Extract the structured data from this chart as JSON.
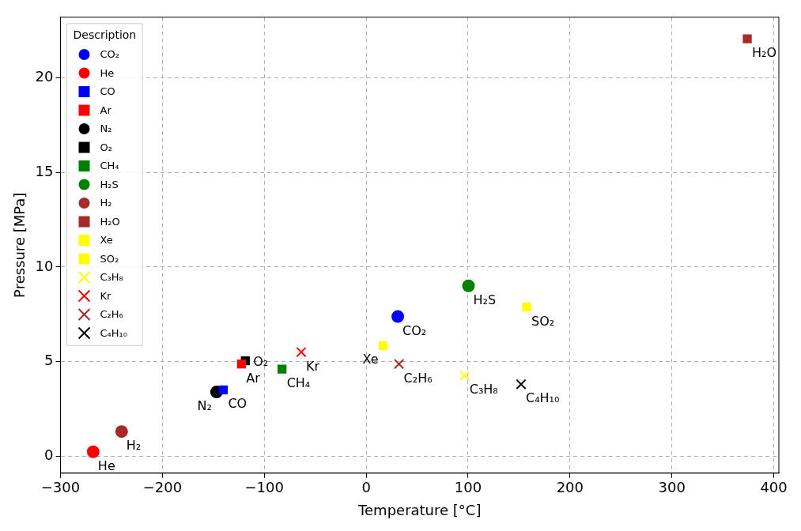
{
  "chart_data": {
    "type": "scatter",
    "xlabel": "Temperature [°C]",
    "ylabel": "Pressure [MPa]",
    "legend_title": "Description",
    "legend": "top left",
    "grid": true,
    "xlim": [
      -300,
      405
    ],
    "ylim": [
      -0.9,
      23.2
    ],
    "xticks": [
      {
        "value": -300,
        "label": "−300"
      },
      {
        "value": -200,
        "label": "−200"
      },
      {
        "value": -100,
        "label": "−100"
      },
      0,
      100,
      200,
      300,
      400
    ],
    "yticks": [
      0,
      5,
      10,
      15,
      20
    ],
    "series": [
      {
        "name": "CO₂",
        "color": "#0000ff",
        "marker": "circle",
        "x": [
          31.0
        ],
        "values": [
          7.38
        ]
      },
      {
        "name": "He",
        "color": "#ff0000",
        "marker": "circle",
        "x": [
          -267.9
        ],
        "values": [
          0.23
        ]
      },
      {
        "name": "CO",
        "color": "#0000ff",
        "marker": "square",
        "x": [
          -140.2
        ],
        "values": [
          3.5
        ]
      },
      {
        "name": "Ar",
        "color": "#ff0000",
        "marker": "square",
        "x": [
          -122.4
        ],
        "values": [
          4.87
        ]
      },
      {
        "name": "N₂",
        "color": "#000000",
        "marker": "circle",
        "x": [
          -146.9
        ],
        "values": [
          3.39
        ]
      },
      {
        "name": "O₂",
        "color": "#000000",
        "marker": "square",
        "x": [
          -118.6
        ],
        "values": [
          5.04
        ]
      },
      {
        "name": "CH₄",
        "color": "#008000",
        "marker": "square",
        "x": [
          -82.6
        ],
        "values": [
          4.6
        ]
      },
      {
        "name": "H₂S",
        "color": "#008000",
        "marker": "circle",
        "x": [
          100.4
        ],
        "values": [
          9.0
        ]
      },
      {
        "name": "H₂",
        "color": "#a52a2a",
        "marker": "circle",
        "x": [
          -240.0
        ],
        "values": [
          1.3
        ]
      },
      {
        "name": "H₂O",
        "color": "#a52a2a",
        "marker": "square",
        "x": [
          374.0
        ],
        "values": [
          22.06
        ]
      },
      {
        "name": "Xe",
        "color": "#ffff00",
        "marker": "square",
        "x": [
          16.6
        ],
        "values": [
          5.84
        ]
      },
      {
        "name": "SO₂",
        "color": "#ffff00",
        "marker": "square",
        "x": [
          157.5
        ],
        "values": [
          7.88
        ]
      },
      {
        "name": "C₃H₈",
        "color": "#ffff00",
        "marker": "cross",
        "x": [
          96.7
        ],
        "values": [
          4.25
        ]
      },
      {
        "name": "Kr",
        "color": "#ff0000",
        "marker": "cross",
        "x": [
          -63.7
        ],
        "values": [
          5.5
        ]
      },
      {
        "name": "C₂H₆",
        "color": "#a52a2a",
        "marker": "cross",
        "x": [
          32.2
        ],
        "values": [
          4.87
        ]
      },
      {
        "name": "C₄H₁₀",
        "color": "#000000",
        "marker": "cross",
        "x": [
          152.0
        ],
        "values": [
          3.8
        ]
      }
    ],
    "annotations": [
      {
        "text": "CO₂",
        "x": 31.0,
        "y": 7.38
      },
      {
        "text": "He",
        "x": -267.9,
        "y": 0.23
      },
      {
        "text": "CO",
        "x": -140.2,
        "y": 3.5
      },
      {
        "text": "Ar",
        "x": -122.4,
        "y": 4.87
      },
      {
        "text": "N₂",
        "x": -146.9,
        "y": 3.39
      },
      {
        "text": "O₂",
        "x": -118.6,
        "y": 5.04
      },
      {
        "text": "CH₄",
        "x": -82.6,
        "y": 4.6
      },
      {
        "text": "H₂S",
        "x": 100.4,
        "y": 9.0
      },
      {
        "text": "H₂",
        "x": -240.0,
        "y": 1.3
      },
      {
        "text": "H₂O",
        "x": 374.0,
        "y": 22.06
      },
      {
        "text": "Xe",
        "x": 16.6,
        "y": 5.84
      },
      {
        "text": "SO₂",
        "x": 157.5,
        "y": 7.88
      },
      {
        "text": "C₃H₈",
        "x": 96.7,
        "y": 4.25
      },
      {
        "text": "Kr",
        "x": -63.7,
        "y": 5.5
      },
      {
        "text": "C₂H₆",
        "x": 32.2,
        "y": 4.87
      },
      {
        "text": "C₄H₁₀",
        "x": 152.0,
        "y": 3.8
      }
    ]
  }
}
